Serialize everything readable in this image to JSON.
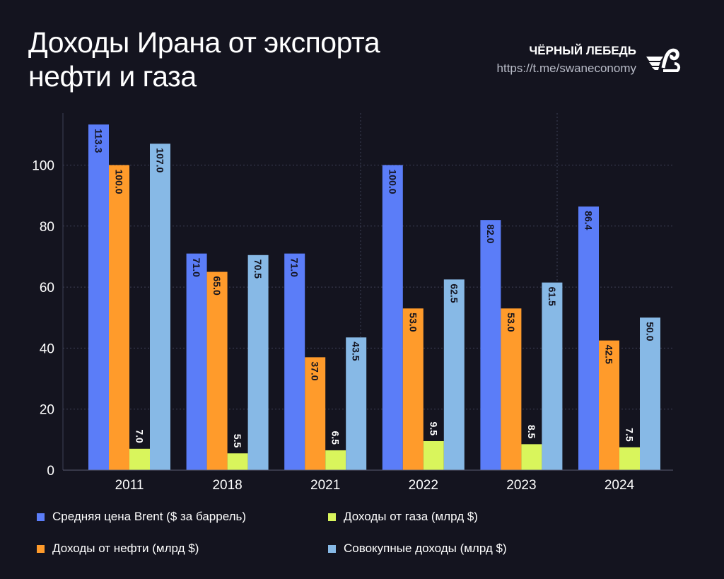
{
  "title_lines": [
    "Доходы Ирана от экспорта",
    "нефти и газа"
  ],
  "brand": {
    "name": "ЧЁРНЫЙ ЛЕБЕДЬ",
    "url": "https://t.me/swaneconomy",
    "logo_icon": "swan-logo-icon"
  },
  "chart_data": {
    "type": "bar",
    "title": "Доходы Ирана от экспорта нефти и газа",
    "categories": [
      "2011",
      "2018",
      "2021",
      "2022",
      "2023",
      "2024"
    ],
    "ylim": [
      0,
      115
    ],
    "yticks": [
      0,
      20,
      40,
      60,
      80,
      100
    ],
    "grid": true,
    "legend_position": "bottom",
    "series": [
      {
        "name": "Средняя цена Brent ($ за баррель)",
        "color": "#5b7df8",
        "values": [
          113.3,
          71.0,
          71.0,
          100.0,
          82.0,
          86.4
        ]
      },
      {
        "name": "Доходы от нефти (млрд $)",
        "color": "#ff9b2b",
        "values": [
          100.0,
          65.0,
          37.0,
          53.0,
          53.0,
          42.5
        ]
      },
      {
        "name": "Доходы от газа (млрд $)",
        "color": "#d9f55c",
        "values": [
          7.0,
          5.5,
          6.5,
          9.5,
          8.5,
          7.5
        ]
      },
      {
        "name": "Совокупные доходы (млрд $)",
        "color": "#87b9e6",
        "values": [
          107.0,
          70.5,
          43.5,
          62.5,
          61.5,
          50.0
        ]
      }
    ]
  }
}
